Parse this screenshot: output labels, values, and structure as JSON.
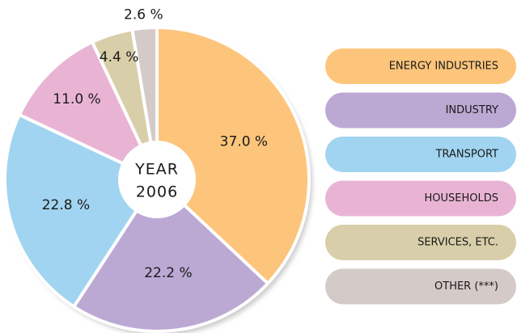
{
  "chart_data": {
    "type": "pie",
    "center_label": [
      "YEAR",
      "2006"
    ],
    "categories": [
      "ENERGY INDUSTRIES",
      "INDUSTRY",
      "TRANSPORT",
      "HOUSEHOLDS",
      "SERVICES, ETC.",
      "OTHER (***)"
    ],
    "values": [
      37.0,
      22.2,
      22.8,
      11.0,
      4.4,
      2.6
    ],
    "value_labels": [
      "37.0 %",
      "22.2 %",
      "22.8 %",
      "11.0 %",
      "4.4 %",
      "2.6 %"
    ],
    "colors": [
      "#fdc57b",
      "#bba9d4",
      "#a1d4f0",
      "#e9b4d4",
      "#d8cea9",
      "#d4cac8"
    ],
    "start_angle": 0,
    "direction": "clockwise"
  }
}
